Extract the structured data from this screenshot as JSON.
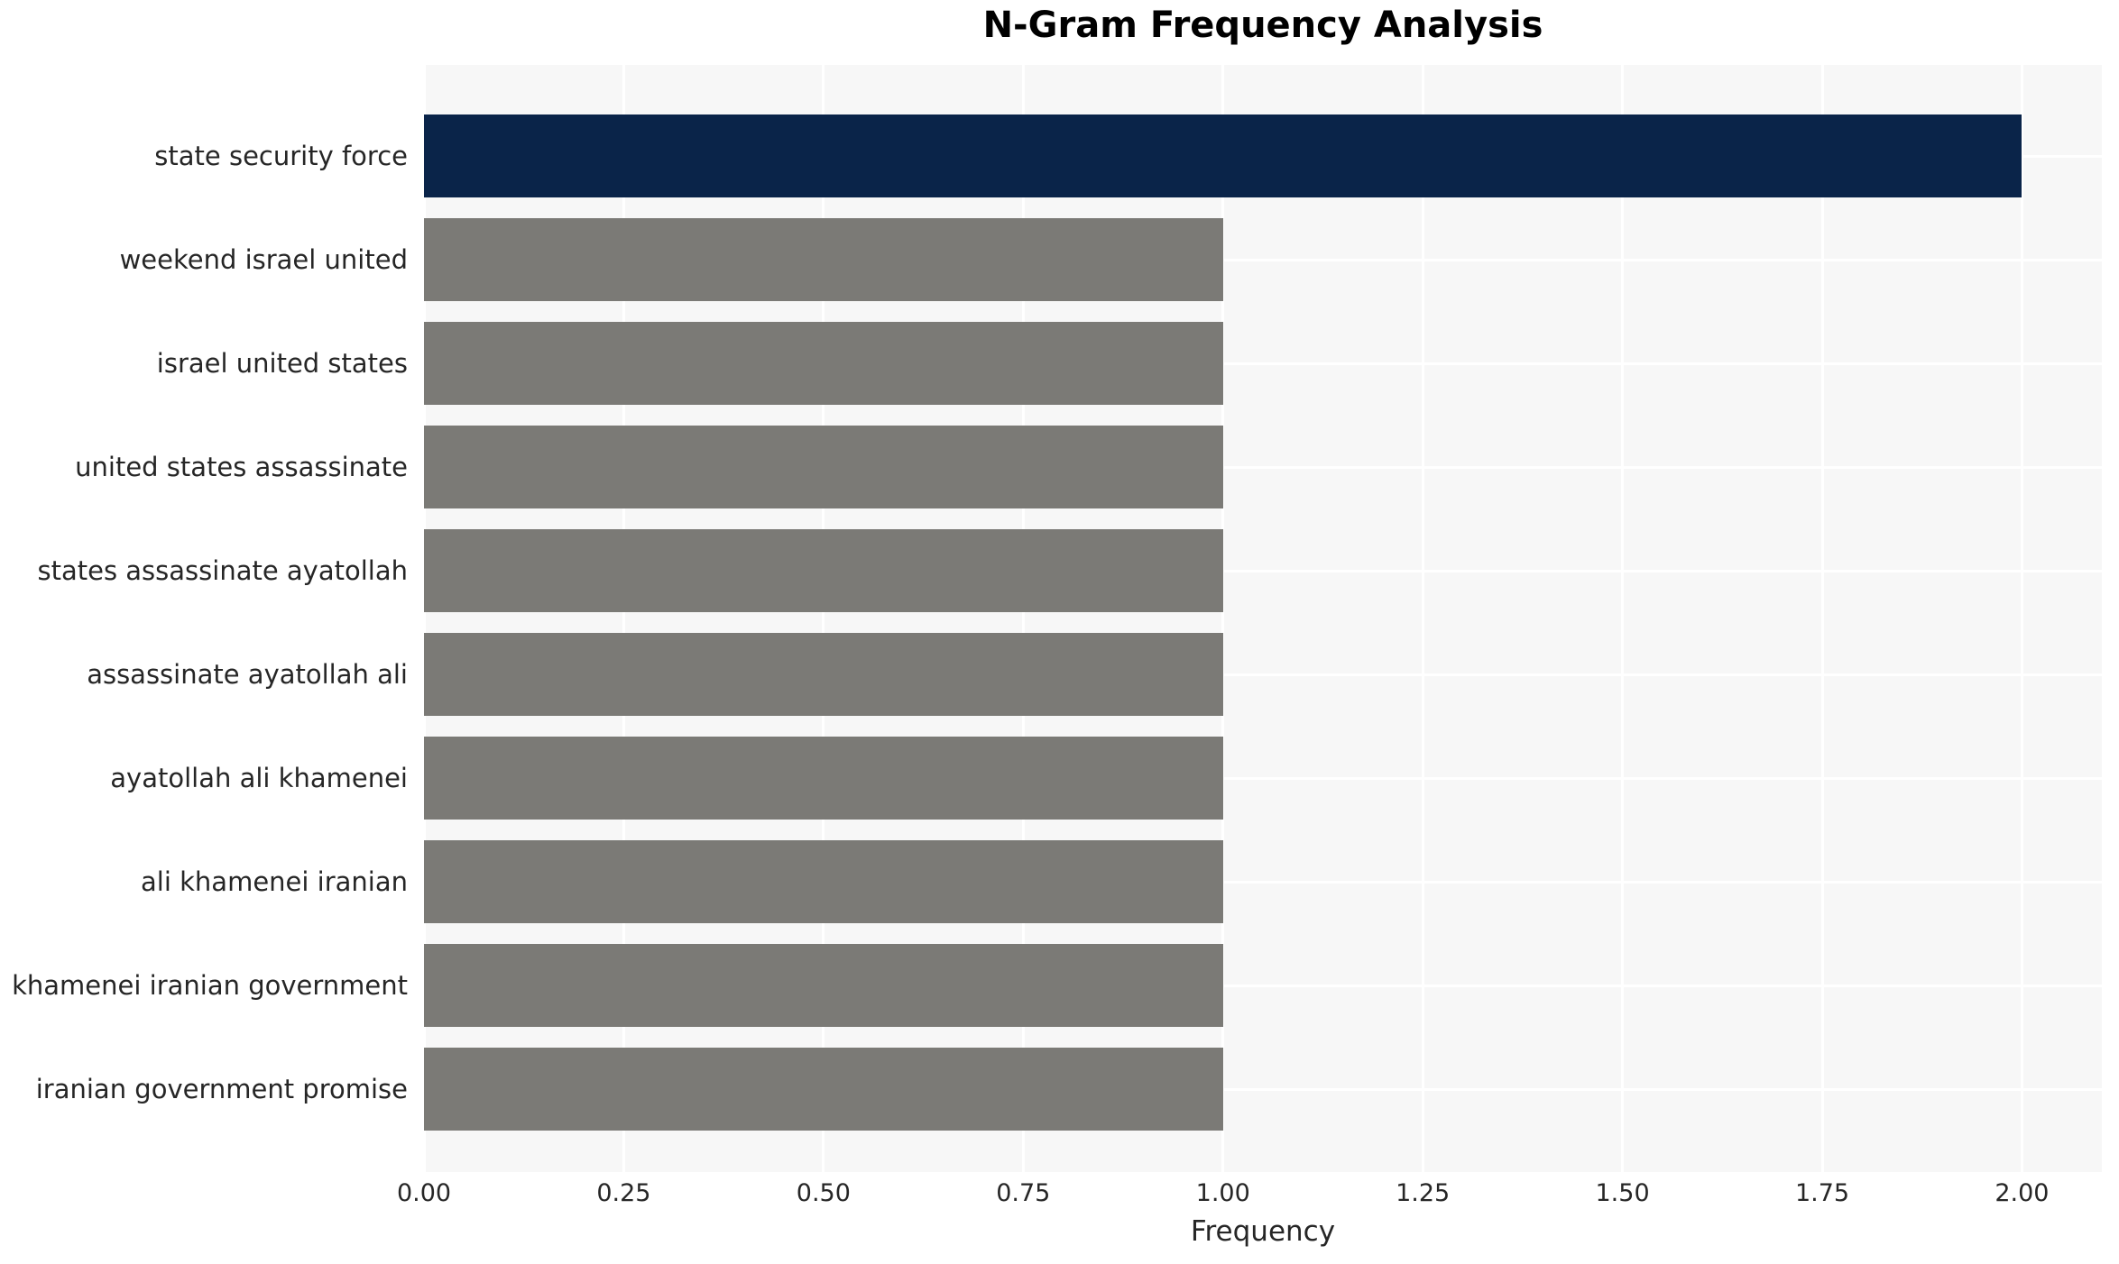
{
  "chart_data": {
    "type": "bar",
    "orientation": "horizontal",
    "title": "N-Gram Frequency Analysis",
    "xlabel": "Frequency",
    "ylabel": "",
    "categories": [
      "state security force",
      "weekend israel united",
      "israel united states",
      "united states assassinate",
      "states assassinate ayatollah",
      "assassinate ayatollah ali",
      "ayatollah ali khamenei",
      "ali khamenei iranian",
      "khamenei iranian government",
      "iranian government promise"
    ],
    "values": [
      2,
      1,
      1,
      1,
      1,
      1,
      1,
      1,
      1,
      1
    ],
    "bar_colors": [
      "#0a2449",
      "#7b7a76",
      "#7b7a76",
      "#7b7a76",
      "#7b7a76",
      "#7b7a76",
      "#7b7a76",
      "#7b7a76",
      "#7b7a76",
      "#7b7a76"
    ],
    "xlim": [
      0,
      2.1
    ],
    "xtick_values": [
      0,
      0.25,
      0.5,
      0.75,
      1.0,
      1.25,
      1.5,
      1.75,
      2.0
    ],
    "xtick_labels": [
      "0.00",
      "0.25",
      "0.50",
      "0.75",
      "1.00",
      "1.25",
      "1.50",
      "1.75",
      "2.00"
    ],
    "grid": true,
    "legend": false,
    "colors": {
      "highlight_bar": "#0a2449",
      "default_bar": "#7b7a76",
      "plot_background": "#f7f7f7",
      "gridline": "#ffffff",
      "tick_text": "#262626",
      "title_text": "#000000"
    }
  }
}
